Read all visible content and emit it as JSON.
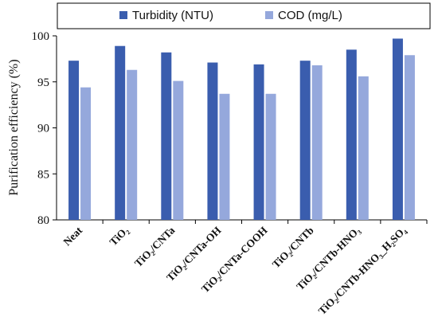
{
  "chart_data": {
    "type": "bar",
    "title": "",
    "xlabel": "",
    "ylabel": "Purification efficiency (%)",
    "ylim": [
      80,
      100
    ],
    "yticks": [
      80,
      85,
      90,
      95,
      100
    ],
    "grid": false,
    "legend_position": "top",
    "categories": [
      "Neat",
      "TiO₂",
      "TiO₂/CNTa",
      "TiO₂/CNTa-OH",
      "TiO₂/CNTa-COOH",
      "TiO₂/CNTb",
      "TiO₂/CNTb-HNO₃",
      "TiO₂/CNTb-HNO₃_H₂SO₄"
    ],
    "series": [
      {
        "name": "Turbidity (NTU)",
        "color": "#3A5DAE",
        "values": [
          97.3,
          98.9,
          98.2,
          97.1,
          96.9,
          97.3,
          98.5,
          99.7
        ]
      },
      {
        "name": "COD (mg/L)",
        "color": "#95A8DC",
        "values": [
          94.4,
          96.3,
          95.1,
          93.7,
          93.7,
          96.8,
          95.6,
          97.9
        ]
      }
    ]
  }
}
